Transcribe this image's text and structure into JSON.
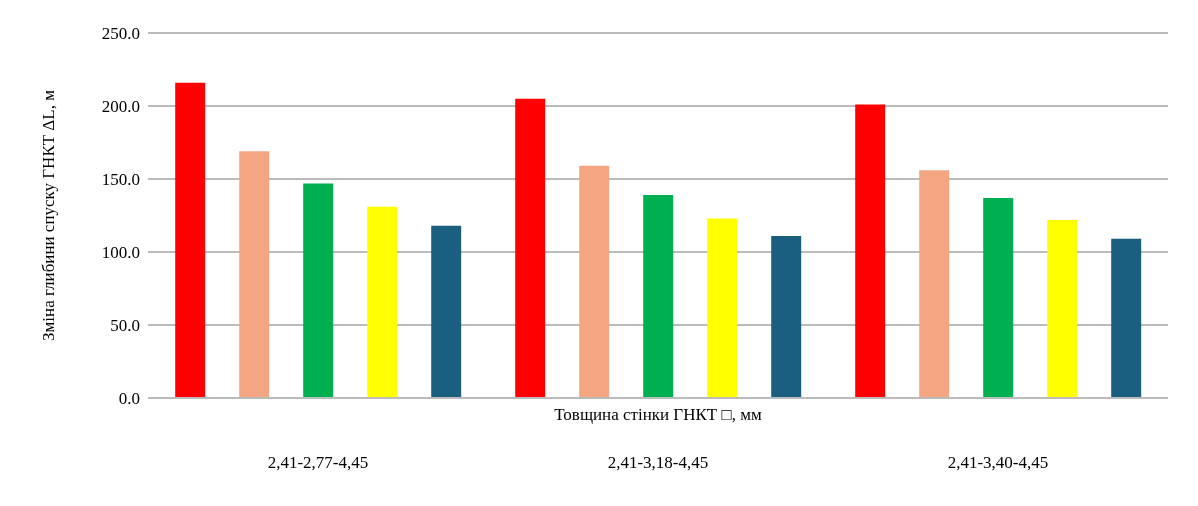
{
  "chart_data": {
    "type": "bar",
    "xlabel": "Товщина стінки ГНКТ □, мм",
    "ylabel": "Зміна глибини спуску ГНКТ ΔL, м",
    "categories": [
      "2,41-2,77-4,45",
      "2,41-3,18-4,45",
      "2,41-3,40-4,45"
    ],
    "series": [
      {
        "color": "#ff0000",
        "values": [
          216,
          205,
          201
        ]
      },
      {
        "color": "#f4a683",
        "values": [
          169,
          159,
          156
        ]
      },
      {
        "color": "#00b050",
        "values": [
          147,
          139,
          137
        ]
      },
      {
        "color": "#ffff00",
        "values": [
          131,
          123,
          122
        ]
      },
      {
        "color": "#1a5e80",
        "values": [
          118,
          111,
          109
        ]
      }
    ],
    "ylim": [
      0,
      250
    ],
    "yticks": [
      {
        "value": 0,
        "label": "0.0"
      },
      {
        "value": 50,
        "label": "50.0"
      },
      {
        "value": 100,
        "label": "100.0"
      },
      {
        "value": 150,
        "label": "150.0"
      },
      {
        "value": 200,
        "label": "200.0"
      },
      {
        "value": 250,
        "label": "250.0"
      }
    ],
    "grid": "y",
    "legend": false
  }
}
